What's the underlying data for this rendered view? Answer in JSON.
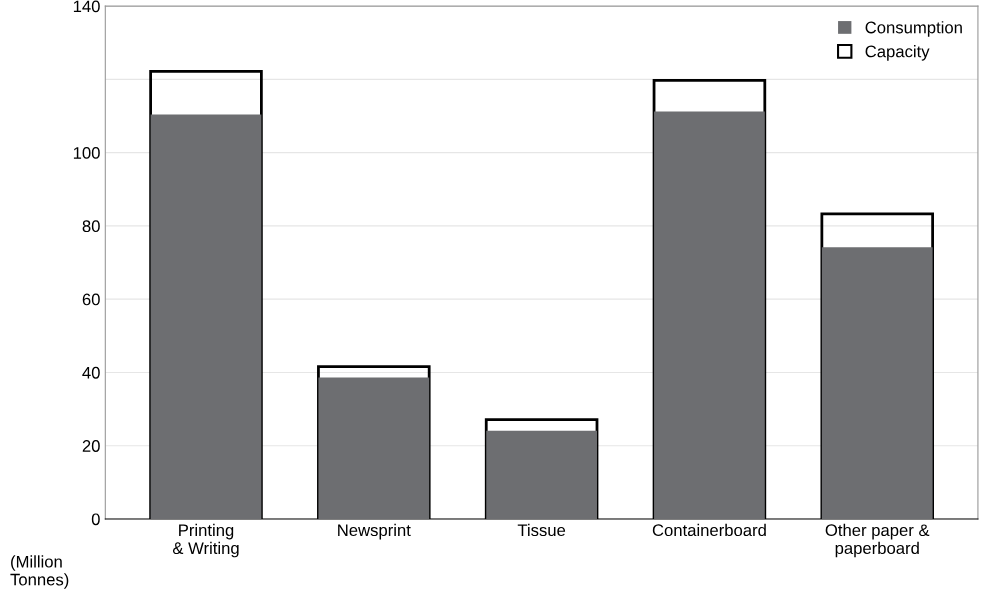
{
  "chart_data": {
    "type": "bar",
    "ylabel": "(Million\nTonnes)",
    "categories": [
      "Printing\n& Writing",
      "Newsprint",
      "Tissue",
      "Containerboard",
      "Other paper &\npaperboard"
    ],
    "series": [
      {
        "name": "Capacity",
        "color": "#000000",
        "values": [
          122.2,
          41.6,
          27.1,
          119.7,
          83.3
        ]
      },
      {
        "name": "Consumption",
        "color": "#6d6e71",
        "values": [
          110.4,
          38.6,
          24.1,
          111.2,
          74.2
        ]
      }
    ],
    "ylim": [
      0,
      140
    ],
    "yticks": [
      0,
      20,
      40,
      60,
      80,
      100,
      {
        "value": 120,
        "label": null
      },
      140
    ],
    "grid": "y",
    "legend": "top right"
  }
}
